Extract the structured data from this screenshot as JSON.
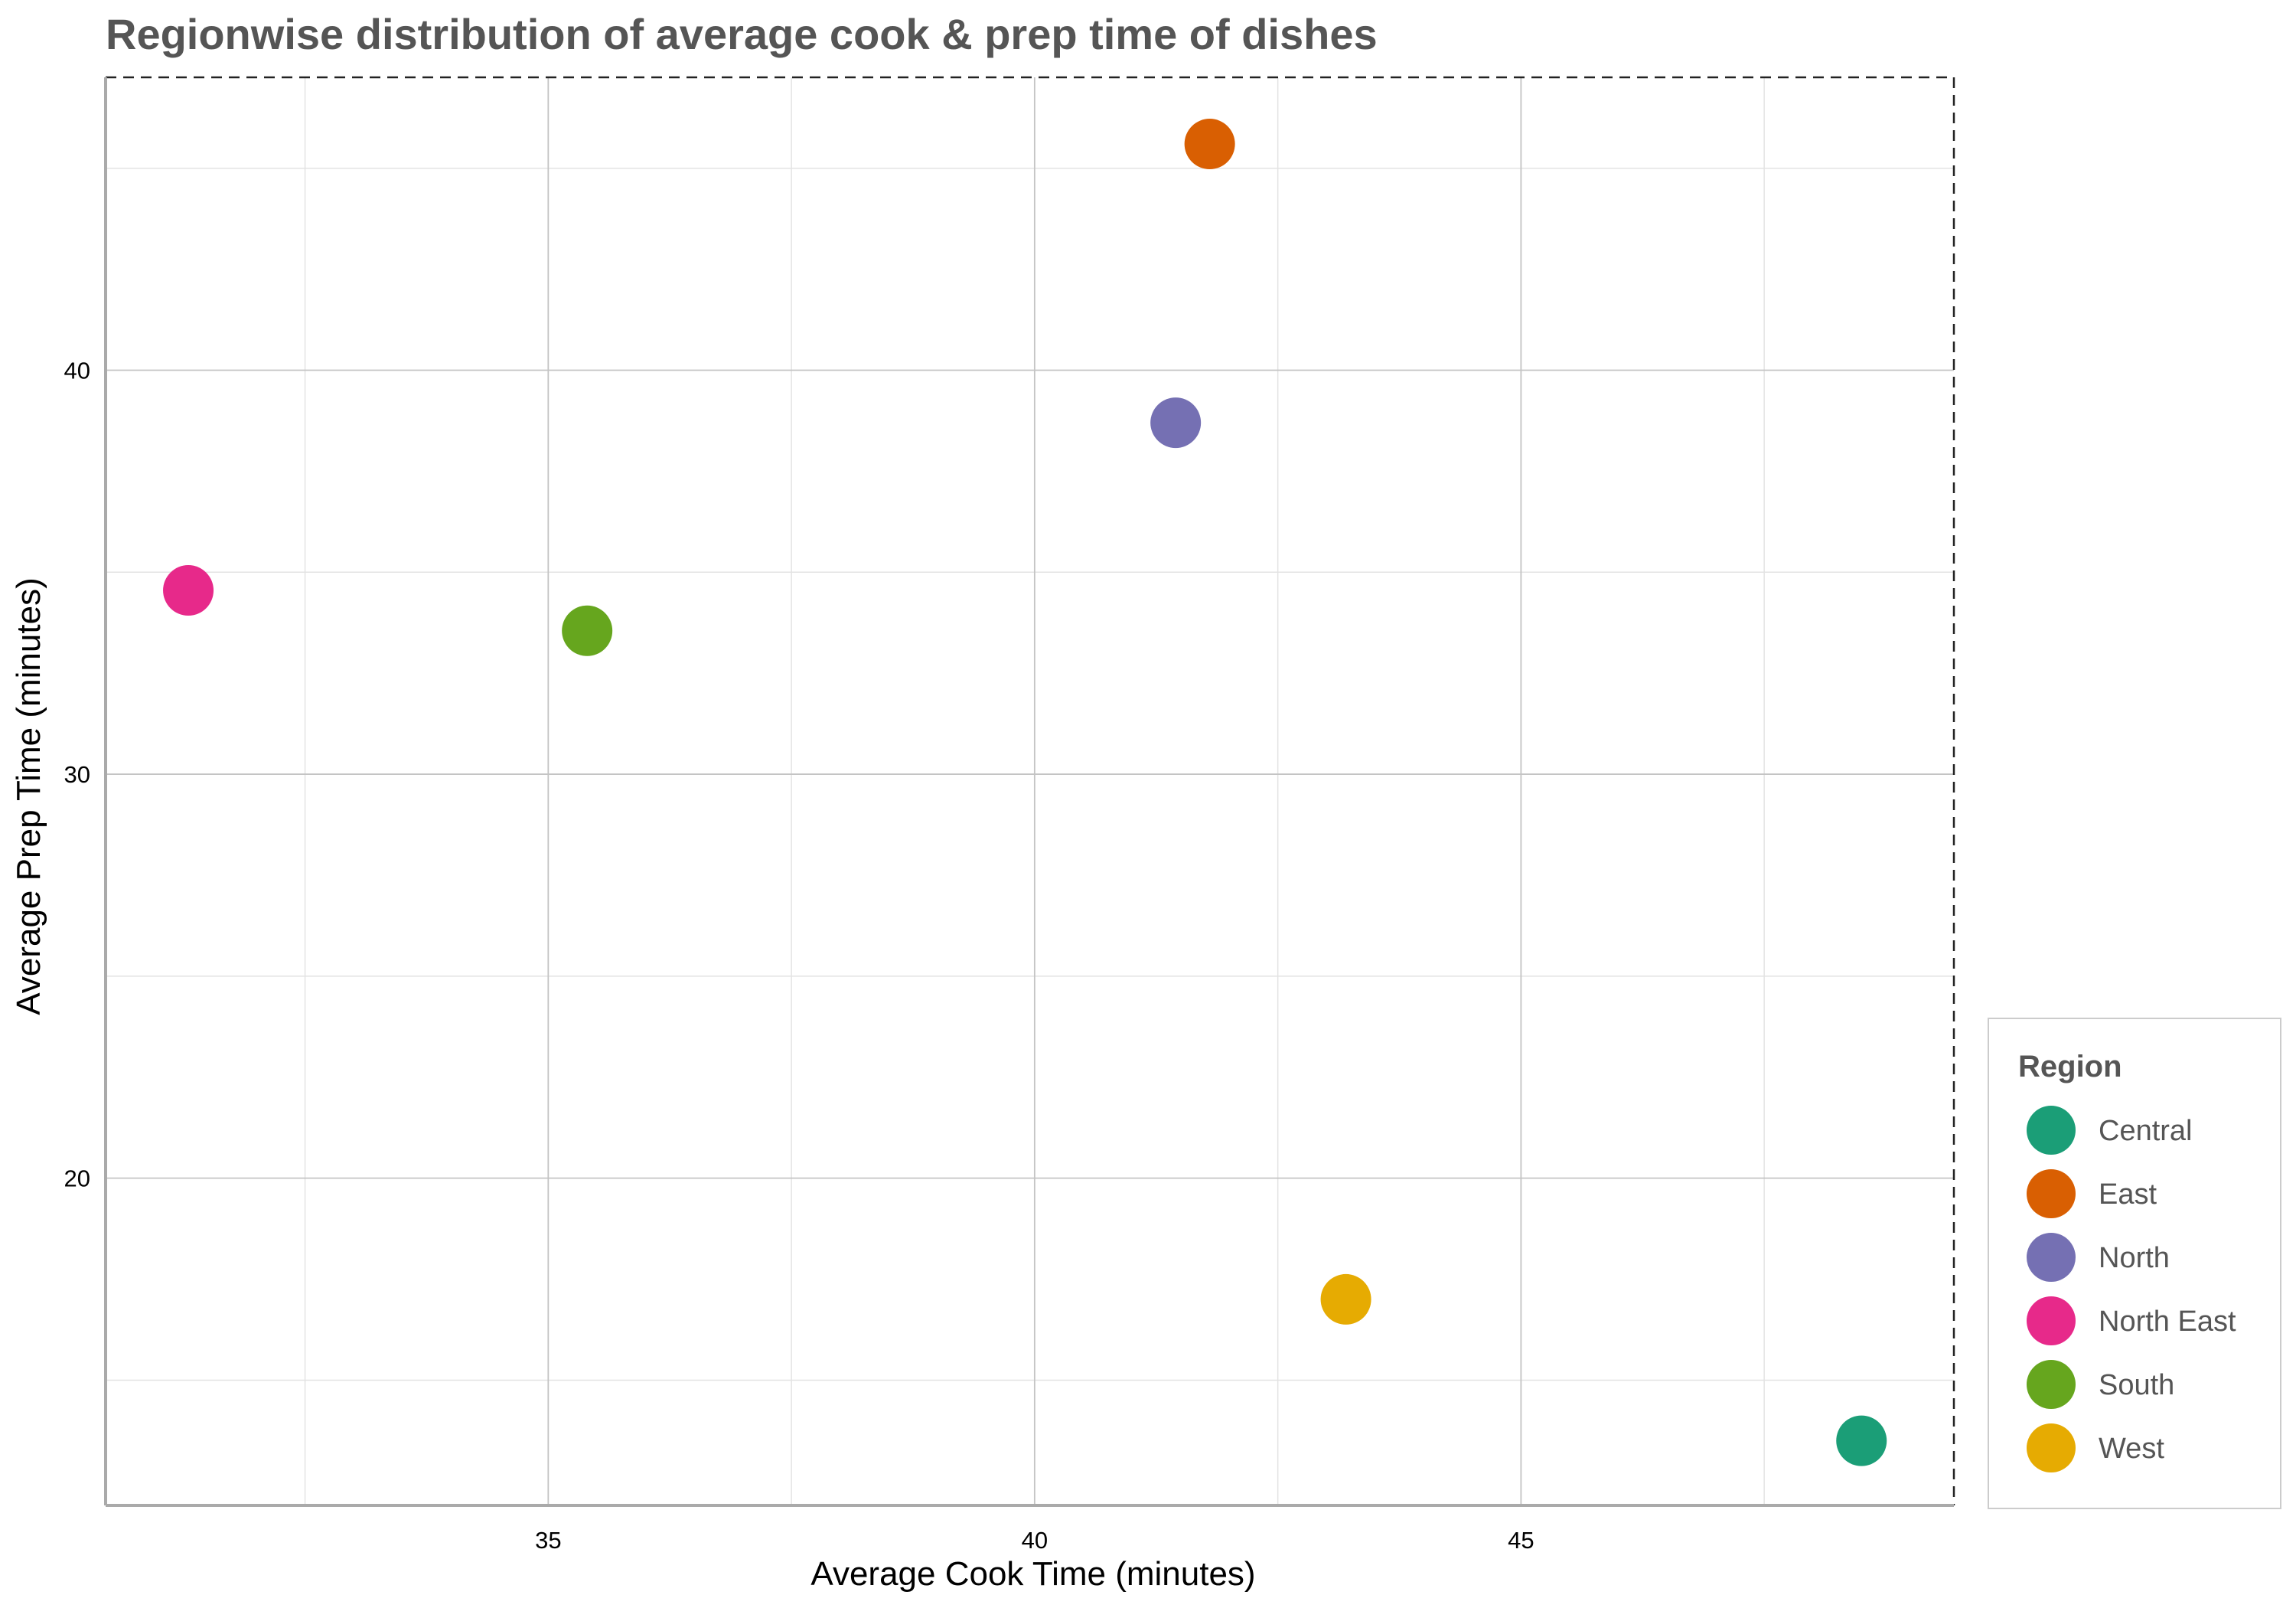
{
  "chart_data": {
    "type": "scatter",
    "title": "Regionwise distribution of average cook & prep time of dishes",
    "xlabel": "Average Cook Time (minutes)",
    "ylabel": "Average Prep Time (minutes)",
    "xlim": [
      30.45,
      49.45
    ],
    "ylim": [
      11.9,
      47.25
    ],
    "x_ticks": [
      35,
      40,
      45
    ],
    "y_ticks": [
      20,
      30,
      40
    ],
    "x_minor_ticks": [
      32.5,
      37.5,
      42.5,
      47.5
    ],
    "y_minor_ticks": [
      15,
      25,
      35,
      45
    ],
    "grid": true,
    "legend": {
      "title": "Region",
      "position": "bottom-right"
    },
    "points": [
      {
        "name": "Central",
        "x": 48.5,
        "y": 13.5,
        "color": "#1B9E77"
      },
      {
        "name": "East",
        "x": 41.8,
        "y": 45.6,
        "color": "#D95F02"
      },
      {
        "name": "North",
        "x": 41.45,
        "y": 38.7,
        "color": "#7570B3"
      },
      {
        "name": "North East",
        "x": 31.3,
        "y": 34.55,
        "color": "#E7298A"
      },
      {
        "name": "South",
        "x": 35.4,
        "y": 33.55,
        "color": "#66A61E"
      },
      {
        "name": "West",
        "x": 43.2,
        "y": 17.0,
        "color": "#E6AB02"
      }
    ]
  }
}
